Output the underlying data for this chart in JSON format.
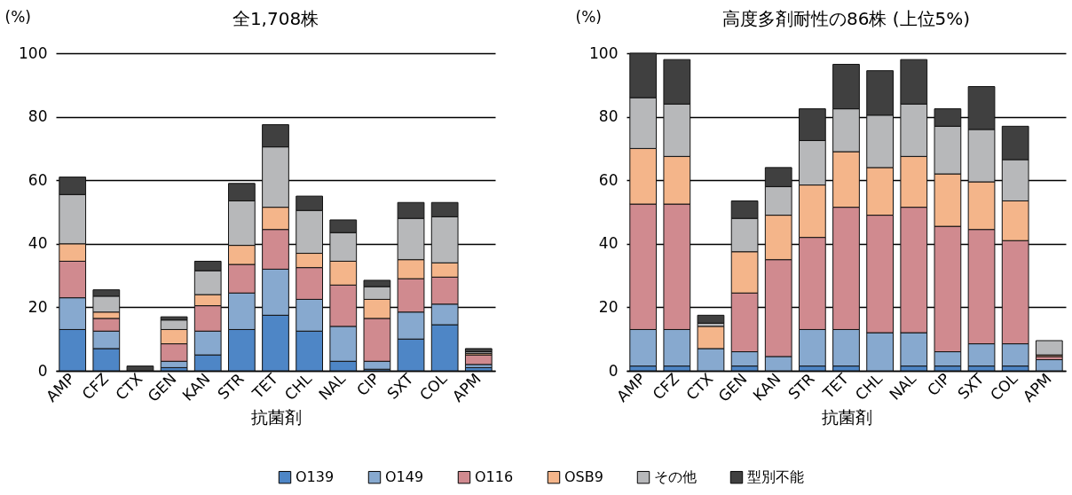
{
  "chart_data": [
    {
      "type": "bar",
      "title": "全1,708株",
      "xlabel": "抗菌剤",
      "ylabel": "(%)",
      "categories": [
        "AMP",
        "CFZ",
        "CTX",
        "GEN",
        "KAN",
        "STR",
        "TET",
        "CHL",
        "NAL",
        "CIP",
        "SXT",
        "COL",
        "APM"
      ],
      "stacked": true,
      "ylim": [
        0,
        100
      ],
      "yticks": [
        0,
        20,
        40,
        60,
        80,
        100
      ],
      "grid": "y",
      "legend": "bottom",
      "series": [
        {
          "name": "O139",
          "color": "#4e86c6",
          "values": [
            13,
            7,
            0,
            1,
            5,
            13,
            17.5,
            12.5,
            3,
            0.5,
            10,
            14.5,
            1
          ]
        },
        {
          "name": "O149",
          "color": "#87a9cf",
          "values": [
            10,
            5.5,
            0,
            2,
            7.5,
            11.5,
            14.5,
            10,
            11,
            2.5,
            8.5,
            6.5,
            1
          ]
        },
        {
          "name": "O116",
          "color": "#d08a8f",
          "values": [
            11.5,
            4,
            0,
            5.5,
            8,
            9,
            12.5,
            10,
            13,
            13.5,
            10.5,
            8.5,
            3
          ]
        },
        {
          "name": "OSB9",
          "color": "#f4b58a",
          "values": [
            5.5,
            2,
            0,
            4.5,
            3.5,
            6,
            7,
            4.5,
            7.5,
            6,
            6,
            4.5,
            0.5
          ]
        },
        {
          "name": "その他",
          "color": "#b7b8ba",
          "values": [
            15.5,
            5,
            0,
            3,
            7.5,
            14,
            19,
            13.5,
            9,
            4,
            13,
            14.5,
            0.5
          ]
        },
        {
          "name": "型別不能",
          "color": "#404040",
          "values": [
            5.5,
            2,
            1.5,
            1,
            3,
            5.5,
            7,
            4.5,
            4,
            2,
            5,
            4.5,
            1
          ]
        }
      ]
    },
    {
      "type": "bar",
      "title": "高度多剤耐性の86株 (上位5%)",
      "xlabel": "抗菌剤",
      "ylabel": "(%)",
      "categories": [
        "AMP",
        "CFZ",
        "CTX",
        "GEN",
        "KAN",
        "STR",
        "TET",
        "CHL",
        "NAL",
        "CIP",
        "SXT",
        "COL",
        "APM"
      ],
      "stacked": true,
      "ylim": [
        0,
        100
      ],
      "yticks": [
        0,
        20,
        40,
        60,
        80,
        100
      ],
      "grid": "y",
      "legend": false,
      "series": [
        {
          "name": "O139",
          "color": "#4e86c6",
          "values": [
            1.5,
            1.5,
            0,
            1.5,
            0,
            1.5,
            1.5,
            0,
            1.5,
            1.5,
            1.5,
            1.5,
            0
          ]
        },
        {
          "name": "O149",
          "color": "#87a9cf",
          "values": [
            11.5,
            11.5,
            7,
            4.5,
            4.5,
            11.5,
            11.5,
            12,
            10.5,
            4.5,
            7,
            7,
            3.5
          ]
        },
        {
          "name": "O116",
          "color": "#d08a8f",
          "values": [
            39.5,
            39.5,
            0,
            18.5,
            30.5,
            29,
            38.5,
            37,
            39.5,
            39.5,
            36,
            32.5,
            1
          ]
        },
        {
          "name": "OSB9",
          "color": "#f4b58a",
          "values": [
            17.5,
            15,
            7,
            13,
            14,
            16.5,
            17.5,
            15,
            16,
            16.5,
            15,
            12.5,
            0.5
          ]
        },
        {
          "name": "その他",
          "color": "#b7b8ba",
          "values": [
            16,
            16.5,
            1,
            10.5,
            9,
            14,
            13.5,
            16.5,
            16.5,
            15,
            16.5,
            13,
            4.5
          ]
        },
        {
          "name": "型別不能",
          "color": "#404040",
          "values": [
            14,
            14,
            2.5,
            5.5,
            6,
            10,
            14,
            14,
            14,
            5.5,
            13.5,
            10.5,
            0
          ]
        }
      ]
    }
  ]
}
